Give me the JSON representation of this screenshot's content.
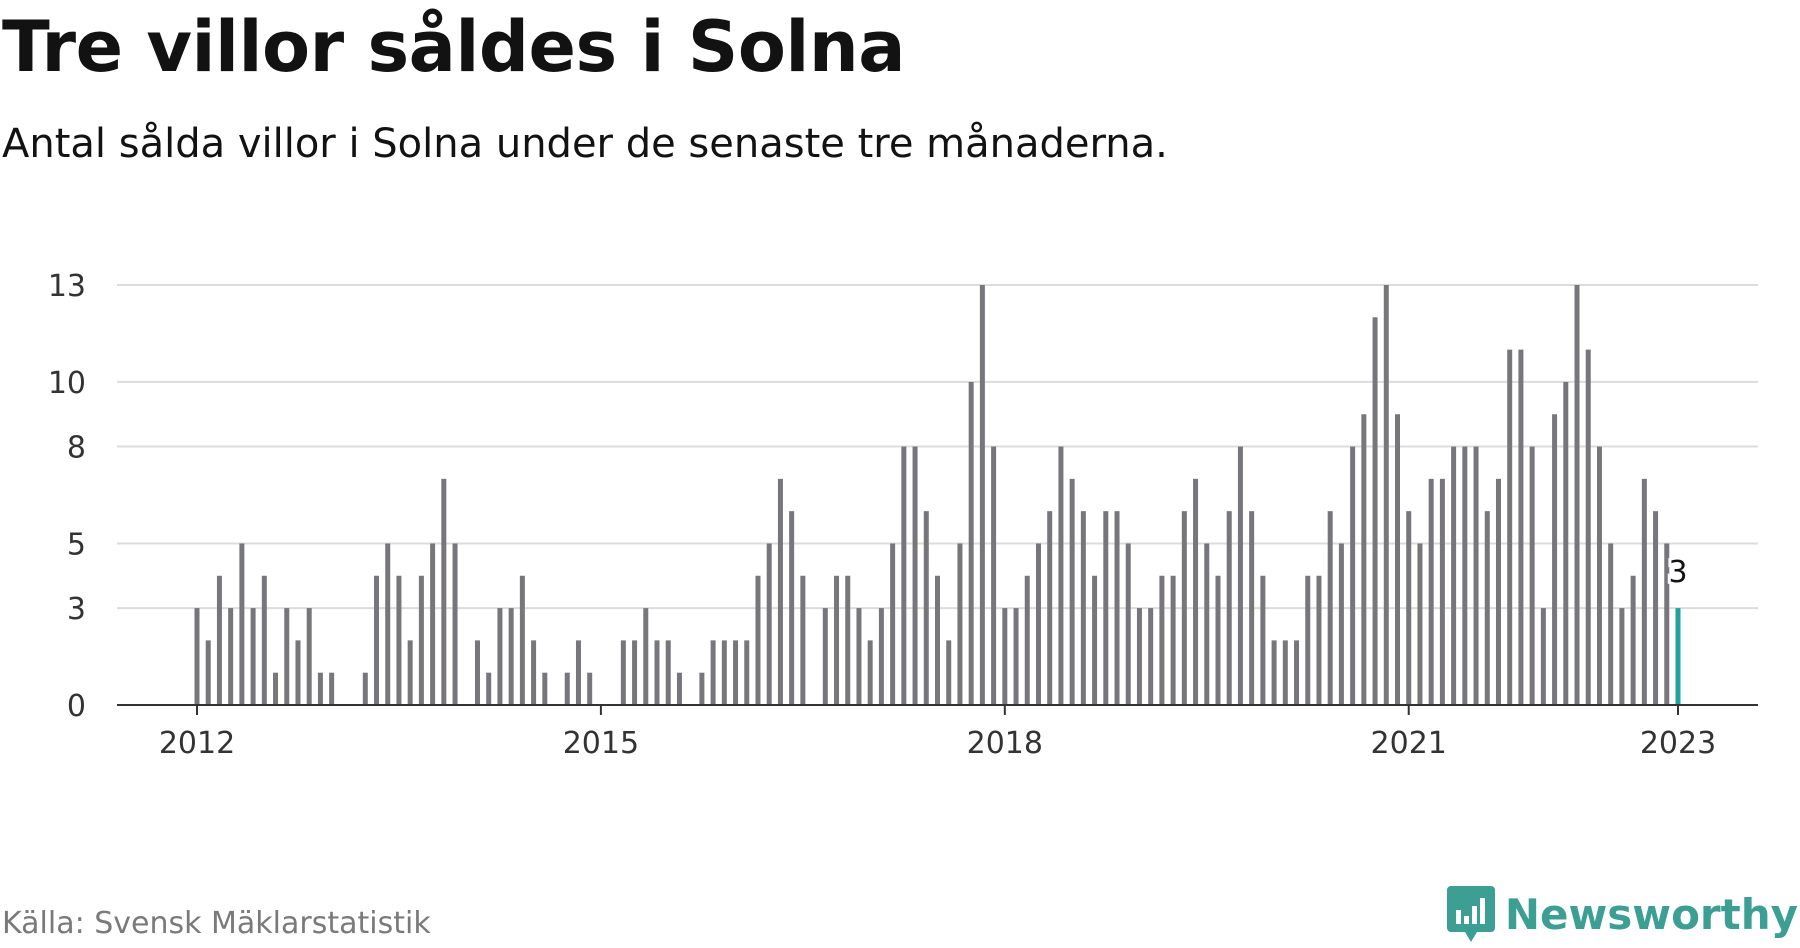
{
  "title": "Tre villor såldes i Solna",
  "subtitle": "Antal sålda villor i Solna under de senaste tre månaderna.",
  "source": "Källa: Svensk Mäklarstatistik",
  "brand": "Newsworthy",
  "colors": {
    "bar": "#77767b",
    "highlight": "#20a39a",
    "grid": "#dcdcdc",
    "axis": "#333333",
    "brand": "#3d9f94"
  },
  "chart_data": {
    "type": "bar",
    "x_start": "2012-01",
    "x_end": "2023-01",
    "values": [
      3,
      2,
      4,
      3,
      5,
      3,
      4,
      1,
      3,
      2,
      3,
      1,
      1,
      null,
      null,
      1,
      4,
      5,
      4,
      2,
      4,
      5,
      7,
      5,
      null,
      2,
      1,
      3,
      3,
      4,
      2,
      1,
      null,
      1,
      2,
      1,
      null,
      null,
      2,
      2,
      3,
      2,
      2,
      1,
      null,
      1,
      2,
      2,
      2,
      2,
      4,
      5,
      7,
      6,
      4,
      null,
      3,
      4,
      4,
      3,
      2,
      3,
      5,
      8,
      8,
      6,
      4,
      2,
      5,
      10,
      13,
      8,
      3,
      3,
      4,
      5,
      6,
      8,
      7,
      6,
      4,
      6,
      6,
      5,
      3,
      3,
      4,
      4,
      6,
      7,
      5,
      4,
      6,
      8,
      6,
      4,
      2,
      2,
      2,
      4,
      4,
      6,
      5,
      8,
      9,
      12,
      13,
      9,
      6,
      5,
      7,
      7,
      8,
      8,
      8,
      6,
      7,
      11,
      11,
      8,
      3,
      9,
      10,
      13,
      11,
      8,
      5,
      3,
      4,
      7,
      6,
      5,
      3
    ],
    "highlight_last": true,
    "data_label": "3",
    "ylim": [
      0,
      13
    ],
    "y_ticks": [
      0,
      3,
      5,
      8,
      10,
      13
    ],
    "x_tick_labels": [
      "2012",
      "2015",
      "2018",
      "2021",
      "2023"
    ],
    "grid": true,
    "legend": "none"
  }
}
